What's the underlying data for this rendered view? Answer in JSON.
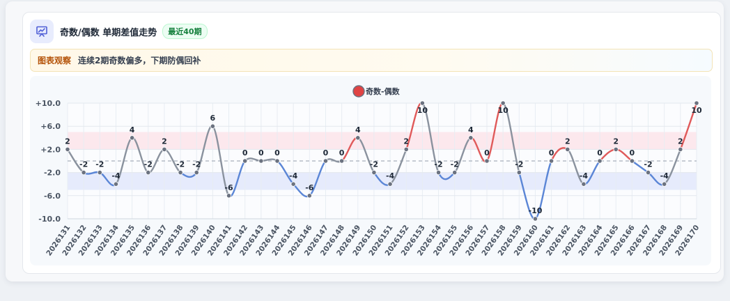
{
  "header": {
    "title": "奇数/偶数 单期差值走势",
    "badge": "最近40期",
    "icon": "chart-presentation-icon"
  },
  "note": {
    "tag": "图表观察",
    "text": "连续2期奇数偏多，下期防偶回补"
  },
  "colors": {
    "positive_line": "#e05a5a",
    "negative_line": "#5b86d6",
    "neutral_line": "#8a929e",
    "upper_band": "#fce4ea",
    "lower_band": "#e2e8fb",
    "legend_marker": "#e04444"
  },
  "chart_data": {
    "type": "line",
    "title": "",
    "xlabel": "",
    "ylabel": "",
    "ylim": [
      -10,
      10
    ],
    "yticks": [
      "+10.0",
      "+6.0",
      "+2.0",
      "-2.0",
      "-6.0",
      "-10.0"
    ],
    "ytick_values": [
      10,
      6,
      2,
      -2,
      -6,
      -10
    ],
    "bands": [
      [
        2,
        5
      ],
      [
        -5,
        -2
      ]
    ],
    "reference_line": 0,
    "legend": "top",
    "grid": true,
    "categories": [
      "2026131",
      "2026132",
      "2026133",
      "2026134",
      "2026135",
      "2026136",
      "2026137",
      "2026138",
      "2026139",
      "2026140",
      "2026141",
      "2026142",
      "2026143",
      "2026144",
      "2026145",
      "2026146",
      "2026147",
      "2026148",
      "2026149",
      "2026150",
      "2026151",
      "2026152",
      "2026153",
      "2026154",
      "2026155",
      "2026156",
      "2026157",
      "2026158",
      "2026159",
      "2026160",
      "2026161",
      "2026162",
      "2026163",
      "2026164",
      "2026165",
      "2026166",
      "2026167",
      "2026168",
      "2026169",
      "2026170"
    ],
    "series": [
      {
        "name": "奇数-偶数",
        "values": [
          2,
          -2,
          -2,
          -4,
          4,
          -2,
          2,
          -2,
          -2,
          6,
          -6,
          0,
          0,
          0,
          -4,
          -6,
          0,
          0,
          4,
          -2,
          -4,
          2,
          10,
          -2,
          -2,
          4,
          0,
          10,
          -2,
          -10,
          0,
          2,
          -4,
          0,
          2,
          0,
          -2,
          -4,
          2,
          10
        ]
      }
    ]
  }
}
